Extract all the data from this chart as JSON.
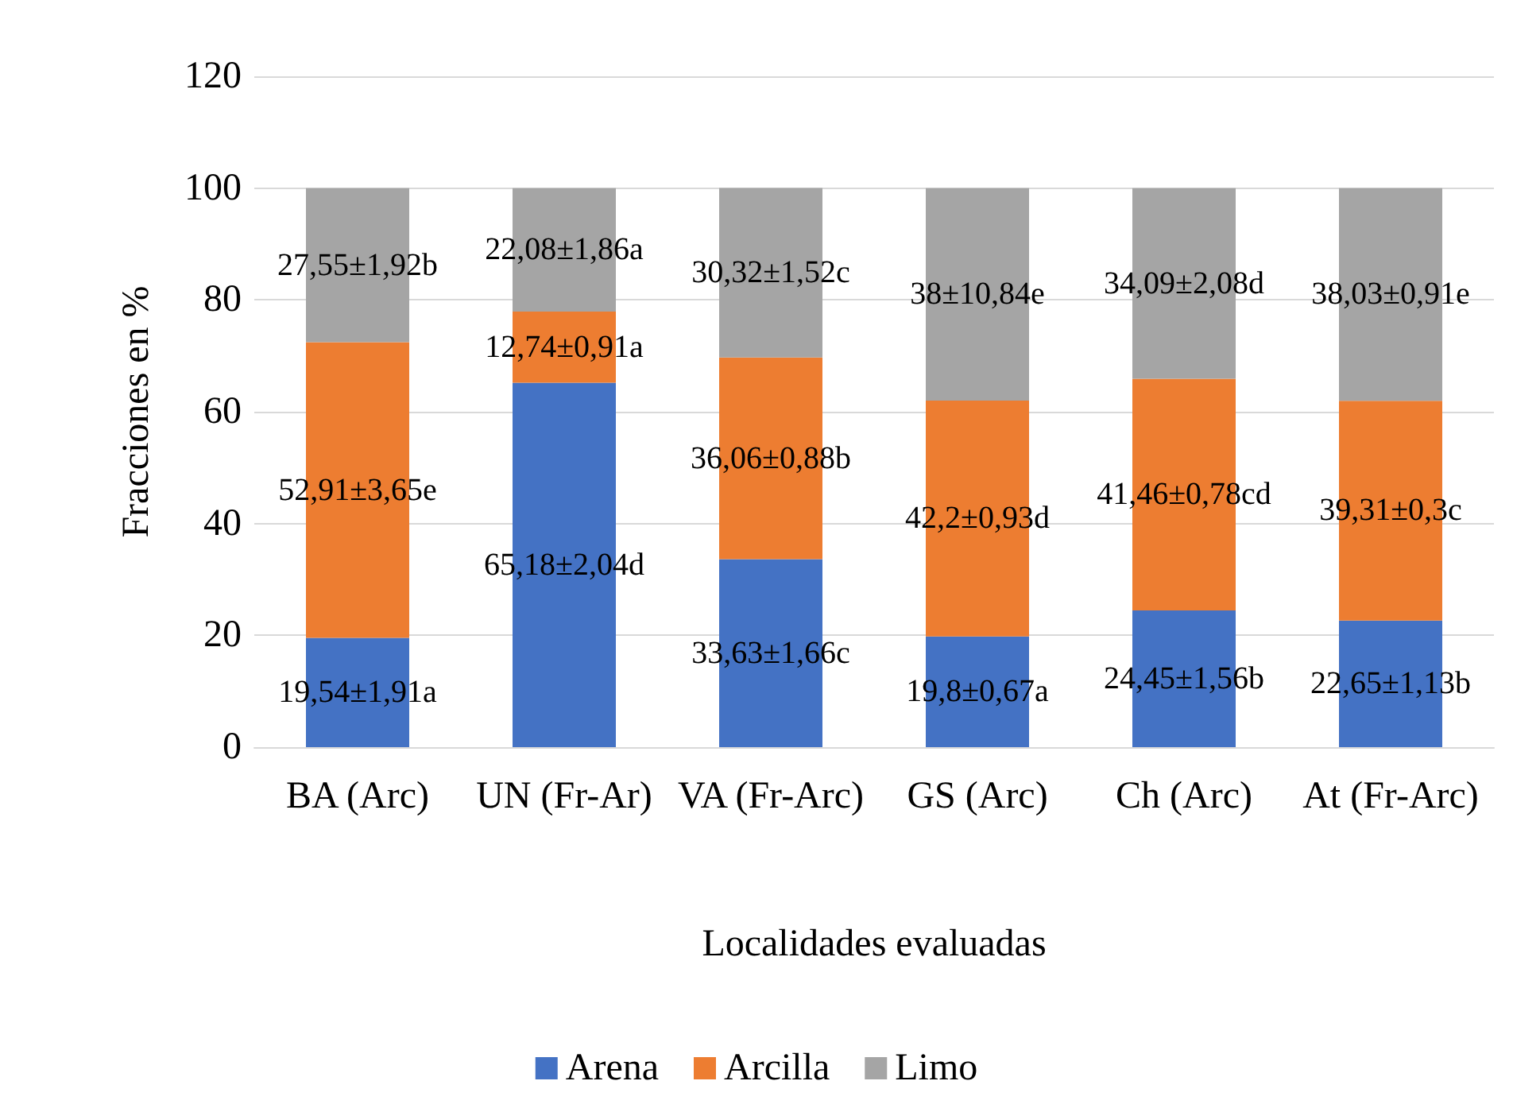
{
  "chart_data": {
    "type": "bar",
    "stacked": true,
    "xlabel": "Localidades evaluadas",
    "ylabel": "Fracciones en %",
    "categories": [
      "BA (Arc)",
      "UN (Fr-Ar)",
      "VA (Fr-Arc)",
      "GS (Arc)",
      "Ch (Arc)",
      "At (Fr-Arc)"
    ],
    "series": [
      {
        "name": "Arena",
        "color": "#4472c4",
        "values": [
          19.54,
          65.18,
          33.63,
          19.8,
          24.45,
          22.65
        ],
        "value_labels": [
          "19,54±1,91a",
          "65,18±2,04d",
          "33,63±1,66c",
          "19,8±0,67a",
          "24,45±1,56b",
          "22,65±1,13b"
        ]
      },
      {
        "name": "Arcilla",
        "color": "#ed7d31",
        "values": [
          52.91,
          12.74,
          36.06,
          42.2,
          41.46,
          39.31
        ],
        "value_labels": [
          "52,91±3,65e",
          "12,74±0,91a",
          "36,06±0,88b",
          "42,2±0,93d",
          "41,46±0,78cd",
          "39,31±0,3c"
        ]
      },
      {
        "name": "Limo",
        "color": "#a5a5a5",
        "values": [
          27.55,
          22.08,
          30.32,
          38,
          34.09,
          38.03
        ],
        "value_labels": [
          "27,55±1,92b",
          "22,08±1,86a",
          "30,32±1,52c",
          "38±10,84e",
          "34,09±2,08d",
          "38,03±0,91e"
        ]
      }
    ],
    "ylim": [
      0,
      120
    ],
    "yticks": [
      0,
      20,
      40,
      60,
      80,
      100,
      120
    ],
    "grid": "y",
    "legend": "bottom"
  }
}
